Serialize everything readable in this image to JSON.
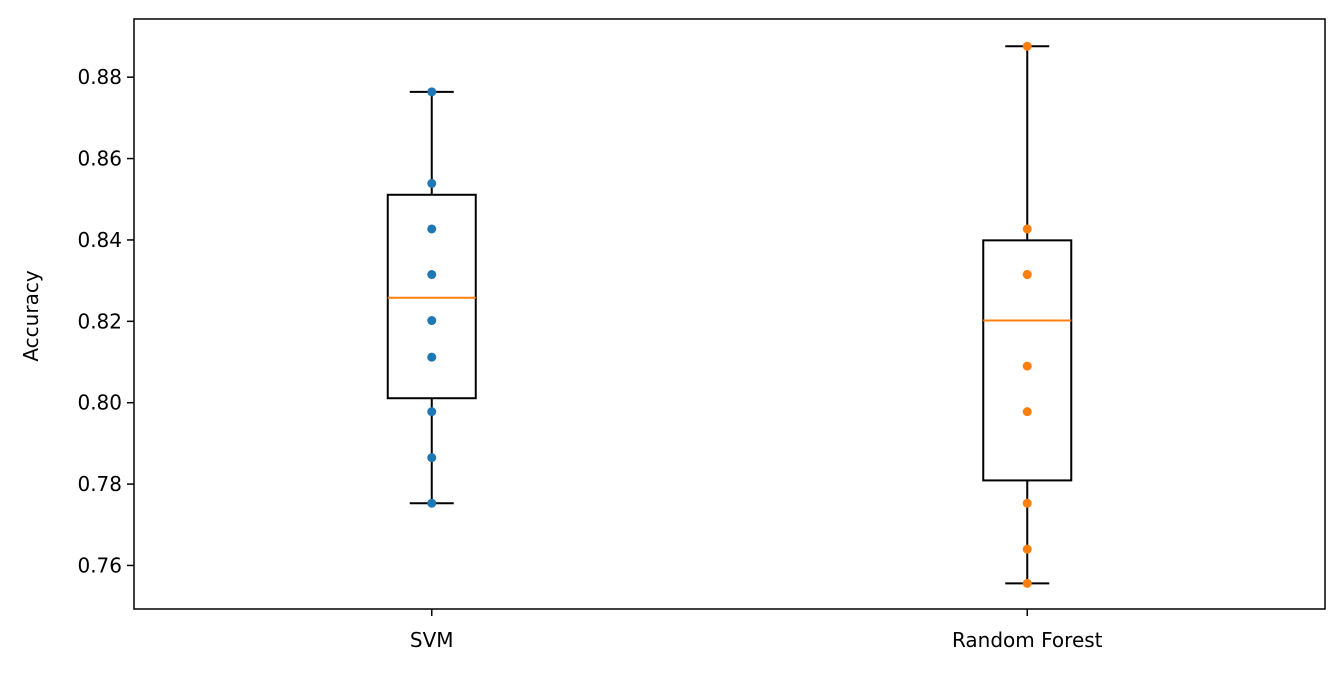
{
  "chart_data": {
    "type": "box",
    "title": "",
    "xlabel": "",
    "ylabel": "Accuracy",
    "ylim": [
      0.7493,
      0.8943
    ],
    "yticks": [
      "0.76",
      "0.78",
      "0.80",
      "0.82",
      "0.84",
      "0.86",
      "0.88"
    ],
    "grid": false,
    "legend": "none",
    "categories": [
      "SVM",
      "Random Forest"
    ],
    "series": [
      {
        "category": "SVM",
        "color": "#1f77b4",
        "q1": 0.8011,
        "median": 0.8258,
        "q3": 0.8511,
        "whisker_low": 0.7753,
        "whisker_high": 0.8764,
        "points": [
          0.8764,
          0.8539,
          0.8427,
          0.8315,
          0.8202,
          0.8112,
          0.7978,
          0.7865,
          0.7753
        ]
      },
      {
        "category": "Random Forest",
        "color": "#ff7f0e",
        "q1": 0.7809,
        "median": 0.8202,
        "q3": 0.8399,
        "whisker_low": 0.7556,
        "whisker_high": 0.8876,
        "points": [
          0.8876,
          0.8427,
          0.8315,
          0.8315,
          0.809,
          0.7978,
          0.7753,
          0.764,
          0.7556
        ]
      }
    ],
    "median_color": "#ff7f0e",
    "box_color": "#000000"
  }
}
